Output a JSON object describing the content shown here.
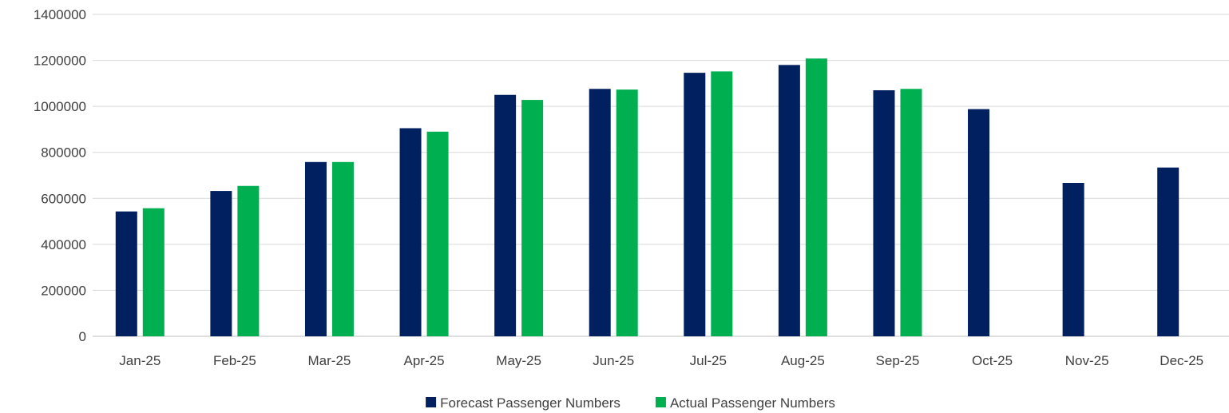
{
  "chart_data": {
    "type": "bar",
    "title": "",
    "xlabel": "",
    "ylabel": "",
    "ylim": [
      0,
      1400000
    ],
    "yticks": [
      0,
      200000,
      400000,
      600000,
      800000,
      1000000,
      1200000,
      1400000
    ],
    "ytick_labels": [
      "0",
      "200000",
      "400000",
      "600000",
      "800000",
      "1000000",
      "1200000",
      "1400000"
    ],
    "grid": true,
    "legend_position": "bottom",
    "categories": [
      "Jan-25",
      "Feb-25",
      "Mar-25",
      "Apr-25",
      "May-25",
      "Jun-25",
      "Jul-25",
      "Aug-25",
      "Sep-25",
      "Oct-25",
      "Nov-25",
      "Dec-25"
    ],
    "series": [
      {
        "name": "Forecast Passenger Numbers",
        "color": "#002060",
        "values": [
          543000,
          632000,
          758000,
          905000,
          1050000,
          1076000,
          1146000,
          1180000,
          1070000,
          988000,
          667000,
          734000
        ]
      },
      {
        "name": "Actual Passenger Numbers",
        "color": "#00B050",
        "values": [
          557000,
          654000,
          758000,
          890000,
          1028000,
          1073000,
          1152000,
          1208000,
          1076000,
          null,
          null,
          null
        ]
      }
    ]
  }
}
